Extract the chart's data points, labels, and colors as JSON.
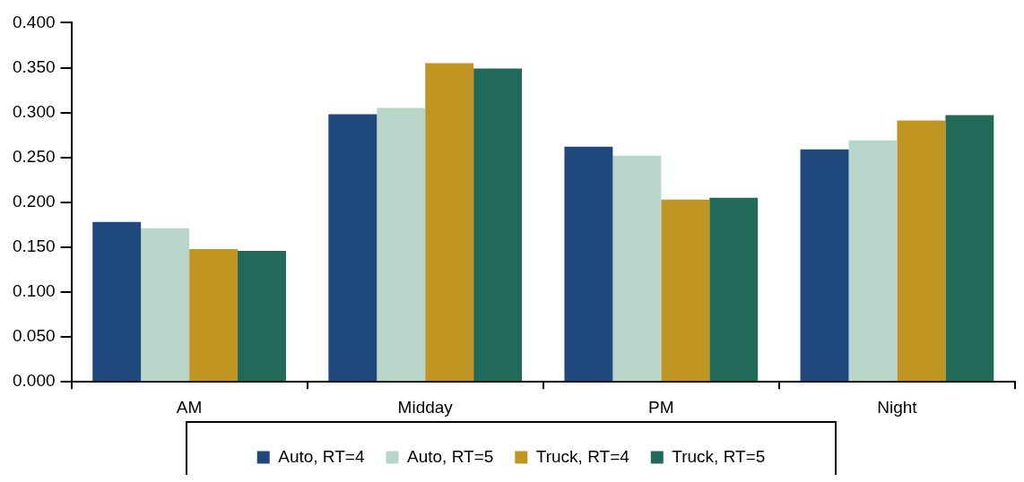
{
  "chart_data": {
    "type": "bar",
    "categories": [
      "AM",
      "Midday",
      "PM",
      "Night"
    ],
    "series": [
      {
        "name": "Auto, RT=4",
        "color": "#1f497d",
        "values": [
          0.178,
          0.298,
          0.262,
          0.259
        ]
      },
      {
        "name": "Auto, RT=5",
        "color": "#b8d5c9",
        "values": [
          0.171,
          0.305,
          0.252,
          0.269
        ]
      },
      {
        "name": "Truck, RT=4",
        "color": "#c19522",
        "values": [
          0.148,
          0.355,
          0.203,
          0.291
        ]
      },
      {
        "name": "Truck, RT=5",
        "color": "#216a5a",
        "values": [
          0.146,
          0.349,
          0.205,
          0.297
        ]
      }
    ],
    "ylim": [
      0,
      0.4
    ],
    "yticks": [
      {
        "value": 0,
        "label": "0.000"
      },
      {
        "value": 0.05,
        "label": "0.050"
      },
      {
        "value": 0.1,
        "label": "0.100"
      },
      {
        "value": 0.15,
        "label": "0.150"
      },
      {
        "value": 0.2,
        "label": "0.200"
      },
      {
        "value": 0.25,
        "label": "0.250"
      },
      {
        "value": 0.3,
        "label": "0.300"
      },
      {
        "value": 0.35,
        "label": "0.350"
      },
      {
        "value": 0.4,
        "label": "0.400"
      }
    ],
    "grid": false,
    "legend": "bottom"
  }
}
